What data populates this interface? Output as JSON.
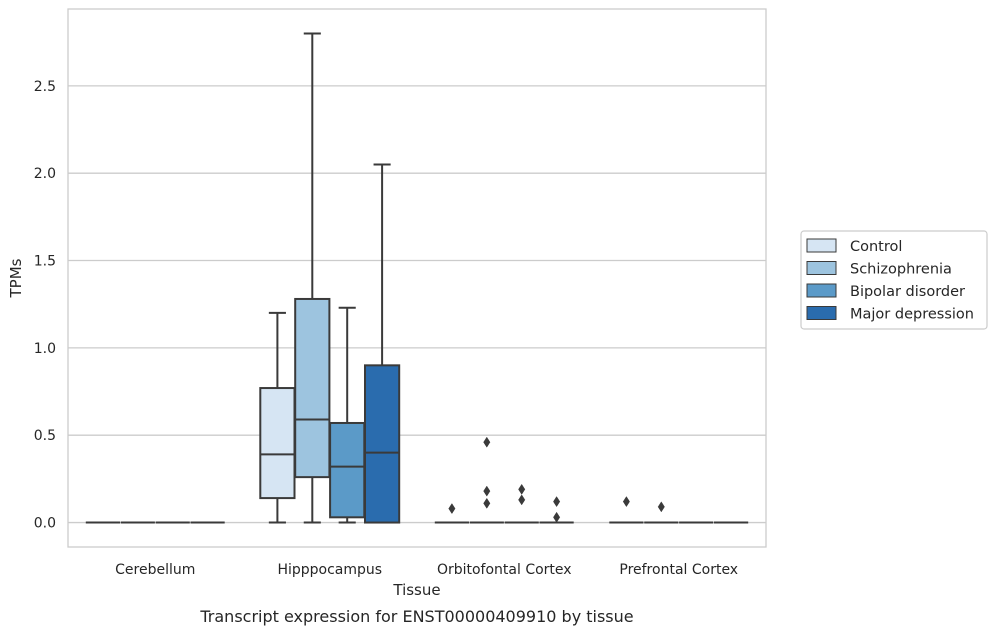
{
  "caption": "Transcript expression for ENST00000409910 by tissue",
  "chart_data": {
    "type": "box",
    "title": "",
    "xlabel": "Tissue",
    "ylabel": "TPMs",
    "ylim": [
      -0.14,
      2.94
    ],
    "yticks": [
      0.0,
      0.5,
      1.0,
      1.5,
      2.0,
      2.5
    ],
    "ytick_labels": [
      "0.0",
      "0.5",
      "1.0",
      "1.5",
      "2.0",
      "2.5"
    ],
    "grid": "horizontal",
    "legend_position": "right",
    "categories": [
      "Cerebellum",
      "Hipppocampus",
      "Orbitofontal Cortex",
      "Prefrontal Cortex"
    ],
    "series": [
      {
        "name": "Control",
        "color": "#d6e5f3",
        "boxes": [
          {
            "min": 0,
            "q1": 0,
            "median": 0,
            "q3": 0,
            "max": 0,
            "outliers": []
          },
          {
            "min": 0,
            "q1": 0.14,
            "median": 0.39,
            "q3": 0.77,
            "max": 1.2,
            "outliers": []
          },
          {
            "min": 0,
            "q1": 0,
            "median": 0,
            "q3": 0,
            "max": 0,
            "outliers": [
              0.08
            ]
          },
          {
            "min": 0,
            "q1": 0,
            "median": 0,
            "q3": 0,
            "max": 0,
            "outliers": [
              0.12
            ]
          }
        ]
      },
      {
        "name": "Schizophrenia",
        "color": "#9dc4df",
        "boxes": [
          {
            "min": 0,
            "q1": 0,
            "median": 0,
            "q3": 0,
            "max": 0,
            "outliers": []
          },
          {
            "min": 0,
            "q1": 0.26,
            "median": 0.59,
            "q3": 1.28,
            "max": 2.8,
            "outliers": []
          },
          {
            "min": 0,
            "q1": 0,
            "median": 0,
            "q3": 0,
            "max": 0,
            "outliers": [
              0.46,
              0.18,
              0.11
            ]
          },
          {
            "min": 0,
            "q1": 0,
            "median": 0,
            "q3": 0,
            "max": 0,
            "outliers": [
              0.09
            ]
          }
        ]
      },
      {
        "name": "Bipolar disorder",
        "color": "#5b9ac8",
        "boxes": [
          {
            "min": 0,
            "q1": 0,
            "median": 0,
            "q3": 0,
            "max": 0,
            "outliers": []
          },
          {
            "min": 0,
            "q1": 0.03,
            "median": 0.32,
            "q3": 0.57,
            "max": 1.23,
            "outliers": []
          },
          {
            "min": 0,
            "q1": 0,
            "median": 0,
            "q3": 0,
            "max": 0,
            "outliers": [
              0.19,
              0.13
            ]
          },
          {
            "min": 0,
            "q1": 0,
            "median": 0,
            "q3": 0,
            "max": 0,
            "outliers": []
          }
        ]
      },
      {
        "name": "Major depression",
        "color": "#2a6cae",
        "boxes": [
          {
            "min": 0,
            "q1": 0,
            "median": 0,
            "q3": 0,
            "max": 0,
            "outliers": []
          },
          {
            "min": 0,
            "q1": 0,
            "median": 0.4,
            "q3": 0.9,
            "max": 2.05,
            "outliers": []
          },
          {
            "min": 0,
            "q1": 0,
            "median": 0,
            "q3": 0,
            "max": 0,
            "outliers": [
              0.12,
              0.03
            ]
          },
          {
            "min": 0,
            "q1": 0,
            "median": 0,
            "q3": 0,
            "max": 0,
            "outliers": []
          }
        ]
      }
    ]
  }
}
